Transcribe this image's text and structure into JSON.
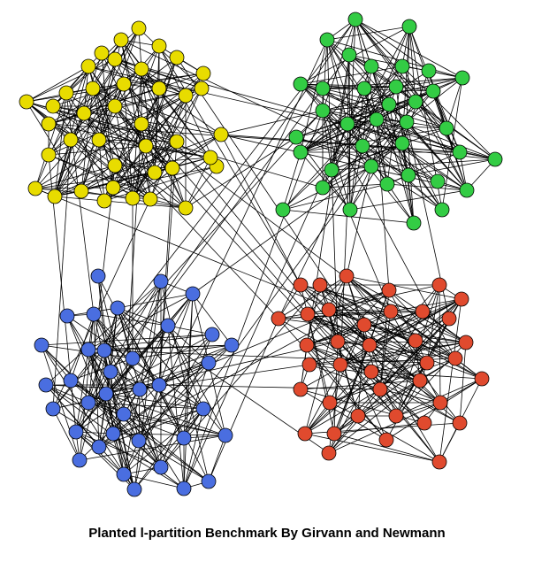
{
  "caption": "Planted l-partition Benchmark By Girvann and Newmann",
  "communities": [
    {
      "name": "yellow",
      "color": "#e8dc00"
    },
    {
      "name": "green",
      "color": "#33cc44"
    },
    {
      "name": "blue",
      "color": "#4a6ee0"
    },
    {
      "name": "red",
      "color": "#e04a2e"
    }
  ]
}
